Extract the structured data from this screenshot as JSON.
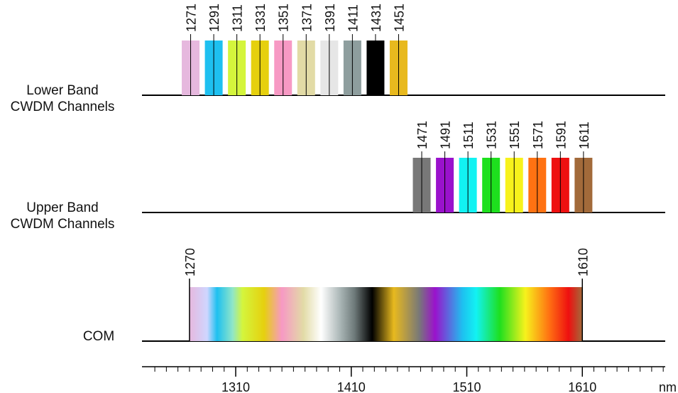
{
  "unit_label": "nm",
  "lower_band": {
    "label_line1": "Lower Band",
    "label_line2": "CWDM Channels",
    "channels": [
      {
        "wavelength": "1271",
        "color": "#e6b8de"
      },
      {
        "wavelength": "1291",
        "color": "#1ec0f0"
      },
      {
        "wavelength": "1311",
        "color": "#d4f53c"
      },
      {
        "wavelength": "1331",
        "color": "#e6d00e"
      },
      {
        "wavelength": "1351",
        "color": "#f799c4"
      },
      {
        "wavelength": "1371",
        "color": "#e2dba6"
      },
      {
        "wavelength": "1391",
        "color": "#e6e6e6"
      },
      {
        "wavelength": "1411",
        "color": "#8e9e9e"
      },
      {
        "wavelength": "1431",
        "color": "#000000"
      },
      {
        "wavelength": "1451",
        "color": "#e8b91e"
      }
    ]
  },
  "upper_band": {
    "label_line1": "Upper Band",
    "label_line2": "CWDM Channels",
    "channels": [
      {
        "wavelength": "1471",
        "color": "#787878"
      },
      {
        "wavelength": "1491",
        "color": "#9a12cc"
      },
      {
        "wavelength": "1511",
        "color": "#12f2f2"
      },
      {
        "wavelength": "1531",
        "color": "#1ee01e"
      },
      {
        "wavelength": "1551",
        "color": "#f7f21c"
      },
      {
        "wavelength": "1571",
        "color": "#ff7212"
      },
      {
        "wavelength": "1591",
        "color": "#ee1010"
      },
      {
        "wavelength": "1611",
        "color": "#a26a3a"
      }
    ]
  },
  "com": {
    "label": "COM",
    "start_label": "1270",
    "end_label": "1610",
    "start_nm": 1270,
    "end_nm": 1610
  },
  "axis": {
    "tick_labels": [
      "1310",
      "1410",
      "1510",
      "1610"
    ]
  }
}
